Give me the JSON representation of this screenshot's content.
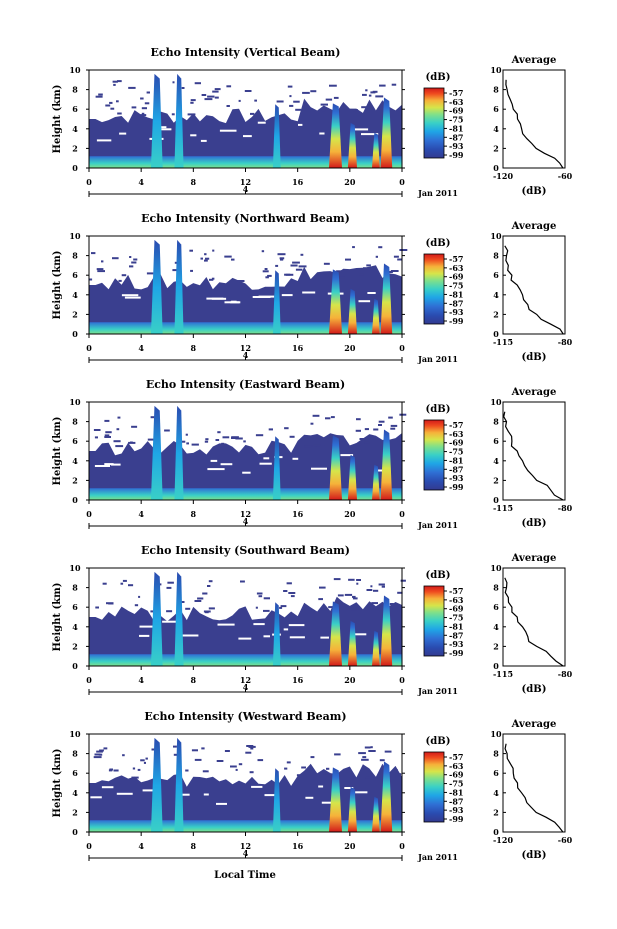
{
  "colors": {
    "background_echo": "#3a3f8f",
    "colorbar": [
      "#323a8f",
      "#2a4bb0",
      "#2f6fd4",
      "#1fa6e6",
      "#39d0c7",
      "#7fe08a",
      "#d6e54a",
      "#f6b23a",
      "#ef4a1f",
      "#d21a1a"
    ]
  },
  "figure": {
    "xlabel": "Local Time",
    "date_label": "Jan 2011",
    "day_marker": "4",
    "colorbar_unit": "(dB)",
    "average_title": "Average",
    "average_xlabel": "(dB)"
  },
  "chart_data": [
    {
      "type": "heatmap",
      "title": "Echo Intensity (Vertical Beam)",
      "ylabel": "Height (km)",
      "xlim": [
        0,
        24
      ],
      "ylim": [
        0,
        10
      ],
      "xticks": [
        "0",
        "4",
        "8",
        "12",
        "16",
        "20",
        "0"
      ],
      "yticks": [
        "0",
        "2",
        "4",
        "6",
        "8",
        "10"
      ],
      "colorbar_ticks": [
        "-57",
        "-63",
        "-69",
        "-75",
        "-81",
        "-87",
        "-93",
        "-99"
      ],
      "average": {
        "xlim": [
          -120,
          -60
        ],
        "xticks": [
          "-120",
          "-60"
        ],
        "height": [
          0,
          1,
          2,
          3,
          4,
          5,
          6,
          7,
          8,
          9
        ],
        "value": [
          -62,
          -70,
          -88,
          -97,
          -102,
          -106,
          -110,
          -113,
          -116,
          -117
        ]
      }
    },
    {
      "type": "heatmap",
      "title": "Echo Intensity (Northward Beam)",
      "ylabel": "Height (km)",
      "xlim": [
        0,
        24
      ],
      "ylim": [
        0,
        10
      ],
      "xticks": [
        "0",
        "4",
        "8",
        "12",
        "16",
        "20",
        "0"
      ],
      "yticks": [
        "0",
        "2",
        "4",
        "6",
        "8",
        "10"
      ],
      "colorbar_ticks": [
        "-57",
        "-63",
        "-69",
        "-75",
        "-81",
        "-87",
        "-93",
        "-99"
      ],
      "average": {
        "xlim": [
          -115,
          -80
        ],
        "xticks": [
          "-115",
          "-80"
        ],
        "height": [
          0,
          1,
          2,
          3,
          4,
          5,
          6,
          7,
          8,
          9
        ],
        "value": [
          -81,
          -88,
          -96,
          -101,
          -104,
          -107,
          -110,
          -112,
          -113,
          -114
        ]
      }
    },
    {
      "type": "heatmap",
      "title": "Echo Intensity (Eastward Beam)",
      "ylabel": "Height (km)",
      "xlim": [
        0,
        24
      ],
      "ylim": [
        0,
        10
      ],
      "xticks": [
        "0",
        "4",
        "8",
        "12",
        "16",
        "20",
        "0"
      ],
      "yticks": [
        "0",
        "2",
        "4",
        "6",
        "8",
        "10"
      ],
      "colorbar_ticks": [
        "-57",
        "-63",
        "-69",
        "-75",
        "-81",
        "-87",
        "-93",
        "-99"
      ],
      "average": {
        "xlim": [
          -115,
          -80
        ],
        "xticks": [
          "-115",
          "-80"
        ],
        "height": [
          0,
          1,
          2,
          3,
          4,
          5,
          6,
          7,
          8,
          9
        ],
        "value": [
          -81,
          -88,
          -96,
          -101,
          -104,
          -107,
          -110,
          -112,
          -113,
          -114
        ]
      }
    },
    {
      "type": "heatmap",
      "title": "Echo Intensity (Southward Beam)",
      "ylabel": "Height (km)",
      "xlim": [
        0,
        24
      ],
      "ylim": [
        0,
        10
      ],
      "xticks": [
        "0",
        "4",
        "8",
        "12",
        "16",
        "20",
        "0"
      ],
      "yticks": [
        "0",
        "2",
        "4",
        "6",
        "8",
        "10"
      ],
      "colorbar_ticks": [
        "-57",
        "-63",
        "-69",
        "-75",
        "-81",
        "-87",
        "-93",
        "-99"
      ],
      "average": {
        "xlim": [
          -115,
          -80
        ],
        "xticks": [
          "-115",
          "-80"
        ],
        "height": [
          0,
          1,
          2,
          3,
          4,
          5,
          6,
          7,
          8,
          9
        ],
        "value": [
          -81,
          -88,
          -96,
          -101,
          -104,
          -107,
          -110,
          -112,
          -113,
          -114
        ]
      }
    },
    {
      "type": "heatmap",
      "title": "Echo Intensity (Westward Beam)",
      "ylabel": "Height (km)",
      "xlim": [
        0,
        24
      ],
      "ylim": [
        0,
        10
      ],
      "xticks": [
        "0",
        "4",
        "8",
        "12",
        "16",
        "20",
        "0"
      ],
      "yticks": [
        "0",
        "2",
        "4",
        "6",
        "8",
        "10"
      ],
      "colorbar_ticks": [
        "-57",
        "-63",
        "-69",
        "-75",
        "-81",
        "-87",
        "-93",
        "-99"
      ],
      "average": {
        "xlim": [
          -120,
          -60
        ],
        "xticks": [
          "-120",
          "-60"
        ],
        "height": [
          0,
          1,
          2,
          3,
          4,
          5,
          6,
          7,
          8,
          9
        ],
        "value": [
          -62,
          -70,
          -88,
          -97,
          -102,
          -106,
          -110,
          -113,
          -116,
          -117
        ]
      }
    }
  ]
}
